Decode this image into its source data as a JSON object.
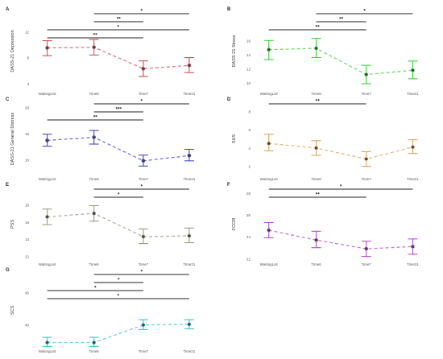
{
  "figure": {
    "categories": [
      "WaitingList",
      "Time6",
      "Time7",
      "Time21"
    ]
  },
  "chart_data": [
    {
      "type": "line",
      "panel_label": "A",
      "ylabel": "DASS-21 Depression",
      "color": "#d04f57",
      "yticks": [
        4,
        8,
        12
      ],
      "ylim": [
        3,
        15
      ],
      "categories": [
        "WaitingList",
        "Time6",
        "Time7",
        "Time21"
      ],
      "mean": [
        9.5,
        9.6,
        6.3,
        6.8
      ],
      "lower": [
        8.3,
        8.4,
        5.1,
        5.7
      ],
      "upper": [
        10.6,
        10.8,
        7.5,
        8.0
      ],
      "brackets": [
        {
          "from": "Time6",
          "to": "Time21",
          "label": "*"
        },
        {
          "from": "Time6",
          "to": "Time7",
          "label": "**"
        },
        {
          "from": "WaitingList",
          "to": "Time21",
          "label": "*"
        },
        {
          "from": "WaitingList",
          "to": "Time7",
          "label": "**"
        }
      ]
    },
    {
      "type": "line",
      "panel_label": "B",
      "ylabel": "DASS-21 Stress",
      "color": "#3fcf3f",
      "yticks": [
        10,
        12,
        14,
        16
      ],
      "ylim": [
        9,
        20
      ],
      "categories": [
        "WaitingList",
        "Time6",
        "Time7",
        "Time21"
      ],
      "mean": [
        14.7,
        14.9,
        11.2,
        11.8
      ],
      "lower": [
        13.3,
        13.6,
        9.9,
        10.6
      ],
      "upper": [
        16.0,
        16.3,
        12.5,
        13.1
      ],
      "brackets": [
        {
          "from": "Time6",
          "to": "Time21",
          "label": "*"
        },
        {
          "from": "Time6",
          "to": "Time7",
          "label": "**"
        },
        {
          "from": "WaitingList",
          "to": "Time7",
          "label": "**"
        }
      ]
    },
    {
      "type": "line",
      "panel_label": "C",
      "ylabel": "DASS-21 General Distress",
      "color": "#4747c8",
      "yticks": [
        10,
        15,
        20
      ],
      "ylim": [
        7,
        21
      ],
      "categories": [
        "WaitingList",
        "Time6",
        "Time7",
        "Time21"
      ],
      "mean": [
        13.7,
        14.3,
        9.8,
        10.8
      ],
      "lower": [
        12.6,
        13.0,
        8.8,
        9.8
      ],
      "upper": [
        14.9,
        15.6,
        10.9,
        12.0
      ],
      "brackets": [
        {
          "from": "Time6",
          "to": "Time21",
          "label": "*"
        },
        {
          "from": "Time6",
          "to": "Time7",
          "label": "***"
        },
        {
          "from": "WaitingList",
          "to": "Time7",
          "label": "**"
        }
      ]
    },
    {
      "type": "line",
      "panel_label": "D",
      "ylabel": "SHS",
      "color": "#e0a35a",
      "yticks": [
        2,
        4,
        6,
        8
      ],
      "ylim": [
        1,
        9
      ],
      "categories": [
        "WaitingList",
        "Time6",
        "Time7",
        "Time21"
      ],
      "mean": [
        4.5,
        4.0,
        2.8,
        4.1
      ],
      "lower": [
        3.7,
        3.2,
        2.0,
        3.4
      ],
      "upper": [
        5.5,
        4.8,
        3.6,
        4.9
      ],
      "brackets": [
        {
          "from": "WaitingList",
          "to": "Time7",
          "label": "**"
        }
      ]
    },
    {
      "type": "line",
      "panel_label": "E",
      "ylabel": "PSS",
      "color": "#9a9a80",
      "yticks": [
        12,
        14,
        16,
        18
      ],
      "ylim": [
        11.5,
        20
      ],
      "categories": [
        "WaitingList",
        "Time6",
        "Time7",
        "Time21"
      ],
      "mean": [
        16.6,
        17.0,
        14.3,
        14.4
      ],
      "lower": [
        15.7,
        16.1,
        13.5,
        13.6
      ],
      "upper": [
        17.5,
        17.9,
        15.2,
        15.3
      ],
      "brackets": [
        {
          "from": "Time6",
          "to": "Time21",
          "label": "*"
        },
        {
          "from": "Time6",
          "to": "Time7",
          "label": "*"
        }
      ]
    },
    {
      "type": "line",
      "panel_label": "F",
      "ylabel": "FCOR",
      "color": "#b44fd0",
      "yticks": [
        22,
        24,
        26,
        28
      ],
      "ylim": [
        21.8,
        28.5
      ],
      "categories": [
        "WaitingList",
        "Time6",
        "Time7",
        "Time21"
      ],
      "mean": [
        24.6,
        23.7,
        22.9,
        23.1
      ],
      "lower": [
        23.9,
        23.0,
        22.2,
        22.4
      ],
      "upper": [
        25.3,
        24.5,
        23.6,
        23.8
      ],
      "brackets": [
        {
          "from": "WaitingList",
          "to": "Time21",
          "label": "*"
        },
        {
          "from": "WaitingList",
          "to": "Time7",
          "label": "**"
        }
      ]
    },
    {
      "type": "line",
      "panel_label": "G",
      "ylabel": "SCS",
      "color": "#3fc7c7",
      "yticks": [
        40,
        45
      ],
      "ylim": [
        36.5,
        48
      ],
      "categories": [
        "WaitingList",
        "Time6",
        "Time7",
        "Time21"
      ],
      "mean": [
        37.3,
        37.3,
        40.0,
        40.1
      ],
      "lower": [
        36.7,
        36.7,
        39.3,
        39.4
      ],
      "upper": [
        38.1,
        38.1,
        40.8,
        40.8
      ],
      "brackets": [
        {
          "from": "Time6",
          "to": "Time21",
          "label": "*"
        },
        {
          "from": "Time6",
          "to": "Time7",
          "label": "*"
        },
        {
          "from": "WaitingList",
          "to": "Time7",
          "label": "*"
        },
        {
          "from": "WaitingList",
          "to": "Time21",
          "label": "*"
        }
      ]
    }
  ]
}
